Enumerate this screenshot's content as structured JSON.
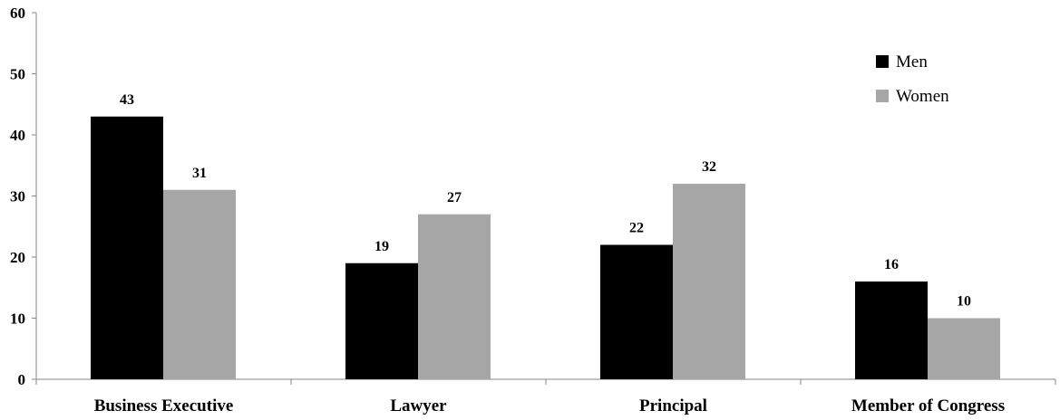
{
  "chart_data": {
    "type": "bar",
    "categories": [
      "Business Executive",
      "Lawyer",
      "Principal",
      "Member of Congress"
    ],
    "series": [
      {
        "name": "Men",
        "values": [
          43,
          19,
          22,
          16
        ],
        "color": "#000000"
      },
      {
        "name": "Women",
        "values": [
          31,
          27,
          32,
          10
        ],
        "color": "#a6a6a6"
      }
    ],
    "ylim": [
      0,
      60
    ],
    "yticks": [
      0,
      10,
      20,
      30,
      40,
      50,
      60
    ],
    "grid": false,
    "legend_position": "top-right",
    "data_labels": true
  }
}
